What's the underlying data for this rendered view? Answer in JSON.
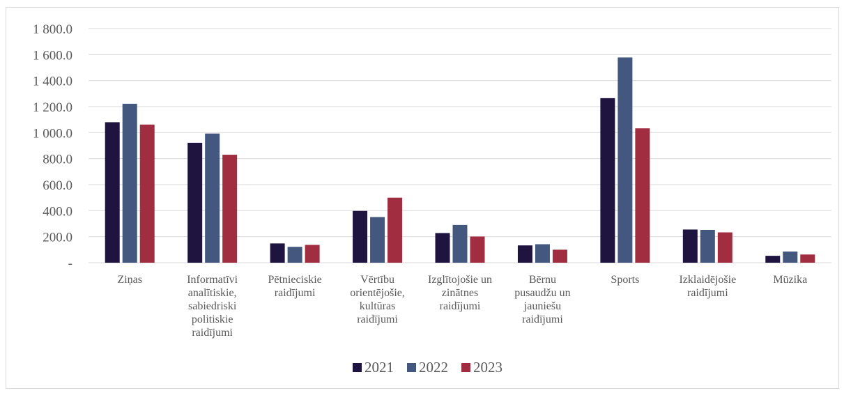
{
  "chart_data": {
    "type": "bar",
    "categories": [
      [
        "Ziņas"
      ],
      [
        "Informatīvi",
        "analītiskie,",
        "sabiedriski",
        "politiskie",
        "raidījumi"
      ],
      [
        "Pētnieciskie",
        "raidījumi"
      ],
      [
        "Vērtību",
        "orientējošie,",
        "kultūras",
        "raidījumi"
      ],
      [
        "Izglītojošie un",
        "zinātnes",
        "raidījumi"
      ],
      [
        "Bērnu",
        "pusaudžu un",
        "jauniešu",
        "raidījumi"
      ],
      [
        "Sports"
      ],
      [
        "Izklaidējošie",
        "raidījumi"
      ],
      [
        "Mūzika"
      ]
    ],
    "series": [
      {
        "name": "2021",
        "color": "#1f1440",
        "values": [
          1080,
          922,
          148,
          398,
          228,
          133,
          1265,
          255,
          53
        ]
      },
      {
        "name": "2022",
        "color": "#44587f",
        "values": [
          1222,
          993,
          122,
          351,
          290,
          142,
          1578,
          252,
          86
        ]
      },
      {
        "name": "2023",
        "color": "#a12d41",
        "values": [
          1062,
          830,
          137,
          500,
          201,
          100,
          1033,
          233,
          63
        ]
      }
    ],
    "y_ticks": [
      "-",
      "200.0",
      "400.0",
      "600.0",
      "800.0",
      "1 000.0",
      "1 200.0",
      "1 400.0",
      "1 600.0",
      "1 800.0"
    ],
    "ylim": [
      0,
      1800
    ],
    "y_step": 200,
    "grid": true,
    "gridline_color": "#d9d9d9",
    "legend_position": "bottom"
  }
}
